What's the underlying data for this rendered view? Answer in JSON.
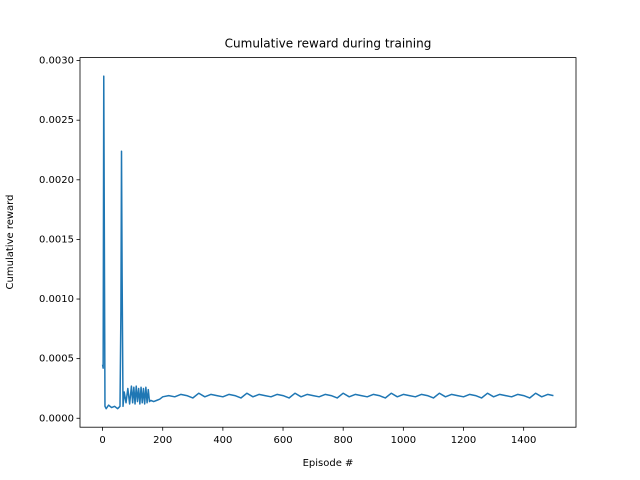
{
  "chart_data": {
    "type": "line",
    "title": "Cumulative reward during training",
    "x_label": "Episode #",
    "y_label": "Cumulative reward",
    "color": "#1f77b4",
    "xlim": [
      -75,
      1574
    ],
    "ylim": [
      -7.5e-05,
      0.003025
    ],
    "xticks": [
      0,
      200,
      400,
      600,
      800,
      1000,
      1200,
      1400
    ],
    "yticks": [
      {
        "value": 0,
        "label": "0.0000"
      },
      {
        "value": 0.0005,
        "label": "0.0005"
      },
      {
        "value": 0.001,
        "label": "0.0010"
      },
      {
        "value": 0.0015,
        "label": "0.0015"
      },
      {
        "value": 0.002,
        "label": "0.0020"
      },
      {
        "value": 0.0025,
        "label": "0.0025"
      },
      {
        "value": 0.003,
        "label": "0.0030"
      }
    ],
    "x": [
      0,
      2,
      4,
      6,
      8,
      12,
      20,
      30,
      40,
      50,
      58,
      61,
      63,
      65,
      68,
      72,
      78,
      84,
      90,
      96,
      100,
      104,
      108,
      112,
      116,
      120,
      124,
      128,
      132,
      136,
      140,
      144,
      148,
      152,
      156,
      160,
      170,
      180,
      190,
      200,
      220,
      240,
      260,
      280,
      300,
      320,
      340,
      360,
      380,
      400,
      420,
      440,
      460,
      480,
      500,
      520,
      540,
      560,
      580,
      600,
      620,
      640,
      660,
      680,
      700,
      720,
      740,
      760,
      780,
      800,
      820,
      840,
      860,
      880,
      900,
      920,
      940,
      960,
      980,
      1000,
      1020,
      1040,
      1060,
      1080,
      1100,
      1120,
      1140,
      1160,
      1180,
      1200,
      1220,
      1240,
      1260,
      1280,
      1300,
      1320,
      1340,
      1360,
      1380,
      1400,
      1420,
      1440,
      1460,
      1480,
      1499
    ],
    "values": [
      0.00045,
      0.00042,
      0.00287,
      0.0015,
      0.0001,
      8e-05,
      0.00011,
      9e-05,
      0.0001,
      8e-05,
      0.0001,
      0.0009,
      0.00224,
      0.0012,
      0.0001,
      0.00022,
      0.00013,
      0.00025,
      0.00012,
      0.00027,
      0.00013,
      0.00026,
      0.00012,
      0.00027,
      0.00014,
      0.00025,
      0.00012,
      0.00026,
      0.00013,
      0.00025,
      0.00012,
      0.00026,
      0.00013,
      0.00024,
      0.00014,
      0.00015,
      0.00014,
      0.00015,
      0.00016,
      0.00018,
      0.00019,
      0.00018,
      0.0002,
      0.00019,
      0.00017,
      0.00021,
      0.00018,
      0.0002,
      0.00019,
      0.00018,
      0.0002,
      0.00019,
      0.00017,
      0.00021,
      0.00018,
      0.0002,
      0.00019,
      0.00018,
      0.0002,
      0.00019,
      0.00017,
      0.00021,
      0.00018,
      0.0002,
      0.00019,
      0.00018,
      0.0002,
      0.00019,
      0.00017,
      0.00021,
      0.00018,
      0.0002,
      0.00019,
      0.00018,
      0.0002,
      0.00019,
      0.00017,
      0.00021,
      0.00018,
      0.0002,
      0.00019,
      0.00018,
      0.0002,
      0.00019,
      0.00017,
      0.00021,
      0.00018,
      0.0002,
      0.00019,
      0.00018,
      0.0002,
      0.00019,
      0.00017,
      0.00021,
      0.00018,
      0.0002,
      0.00019,
      0.00018,
      0.0002,
      0.00019,
      0.00017,
      0.00021,
      0.00018,
      0.0002,
      0.00019
    ]
  }
}
